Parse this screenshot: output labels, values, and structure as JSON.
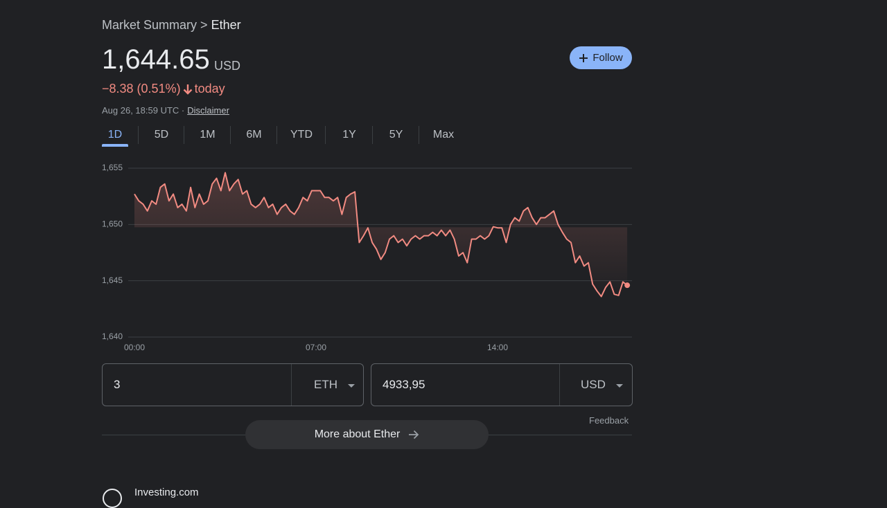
{
  "breadcrumb": {
    "parent": "Market Summary",
    "separator": ">",
    "current": "Ether"
  },
  "quote": {
    "price": "1,644.65",
    "currency": "USD",
    "change": "−8.38 (0.51%)",
    "period": "today",
    "timestamp": "Aug 26, 18:59 UTC ·",
    "disclaimer": "Disclaimer"
  },
  "follow_button": "Follow",
  "tabs": [
    "1D",
    "5D",
    "1M",
    "6M",
    "YTD",
    "1Y",
    "5Y",
    "Max"
  ],
  "active_tab": 0,
  "chart_data": {
    "type": "line",
    "color": "#f28b82",
    "grid": true,
    "x": [
      0,
      10,
      20,
      30,
      40,
      50,
      60,
      70,
      80,
      90,
      100,
      110,
      120,
      130,
      140,
      150,
      160,
      170,
      180,
      190,
      200,
      210,
      220,
      230,
      240,
      250,
      260,
      270,
      280,
      290,
      300,
      310,
      320,
      330,
      340,
      350,
      360,
      370,
      380,
      390,
      400,
      410,
      420,
      430,
      440,
      450,
      460,
      470,
      480,
      490,
      500,
      510,
      520,
      530,
      540,
      550,
      560,
      570,
      580,
      590,
      600,
      610,
      620,
      630,
      640,
      650,
      660,
      670,
      680,
      690,
      700,
      710,
      720,
      730,
      740,
      750,
      760,
      770,
      780,
      790,
      800,
      810,
      820,
      830,
      840,
      850,
      860,
      870,
      880,
      890,
      900,
      910,
      920,
      930,
      940,
      950,
      960,
      970,
      980,
      990,
      1000,
      1010,
      1020,
      1030,
      1040,
      1050,
      1060,
      1070,
      1080,
      1090,
      1100,
      1110,
      1120,
      1130,
      1140
    ],
    "values": [
      1652.7,
      1652.1,
      1651.8,
      1651.2,
      1652.1,
      1651.8,
      1653.3,
      1653.6,
      1652.1,
      1652.7,
      1651.5,
      1651.8,
      1651.2,
      1653.3,
      1651.5,
      1652.7,
      1651.8,
      1652.1,
      1653.6,
      1654.1,
      1653.0,
      1654.6,
      1653.0,
      1653.6,
      1654.0,
      1652.7,
      1653.0,
      1651.8,
      1651.5,
      1651.8,
      1652.4,
      1651.5,
      1651.8,
      1650.9,
      1651.5,
      1651.8,
      1651.2,
      1650.9,
      1651.5,
      1652.4,
      1652.1,
      1653.0,
      1653.0,
      1653.0,
      1652.4,
      1652.4,
      1652.1,
      1652.4,
      1650.9,
      1652.4,
      1652.7,
      1652.9,
      1648.4,
      1649.0,
      1649.7,
      1648.4,
      1647.8,
      1646.9,
      1647.5,
      1648.7,
      1649.0,
      1648.4,
      1648.7,
      1648.1,
      1648.7,
      1649.0,
      1648.7,
      1649.0,
      1649.0,
      1649.3,
      1649.0,
      1649.5,
      1649.0,
      1649.5,
      1648.7,
      1647.2,
      1647.5,
      1646.6,
      1648.7,
      1648.7,
      1649.0,
      1648.7,
      1649.0,
      1649.8,
      1649.7,
      1649.7,
      1648.4,
      1650.0,
      1650.6,
      1650.3,
      1651.2,
      1651.5,
      1650.6,
      1650.0,
      1650.6,
      1650.6,
      1650.9,
      1651.2,
      1650.0,
      1649.3,
      1648.7,
      1648.4,
      1646.6,
      1647.2,
      1646.3,
      1646.6,
      1644.7,
      1644.1,
      1643.6,
      1644.4,
      1644.9,
      1643.8,
      1643.7,
      1644.9,
      1644.6
    ],
    "xlim": [
      0,
      1151
    ],
    "xticks": [
      {
        "value": 0,
        "label": "00:00"
      },
      {
        "value": 420,
        "label": "07:00"
      },
      {
        "value": 840,
        "label": "14:00"
      }
    ],
    "ylim": [
      1640,
      1655
    ],
    "yticks": [
      {
        "value": 1640,
        "label": "1,640"
      },
      {
        "value": 1645,
        "label": "1,645"
      },
      {
        "value": 1650,
        "label": "1,650"
      },
      {
        "value": 1655,
        "label": "1,655"
      }
    ]
  },
  "converter": {
    "from": {
      "amount": "3",
      "currency": "ETH"
    },
    "to": {
      "amount": "4933,95",
      "currency": "USD"
    }
  },
  "feedback": "Feedback",
  "more_button": "More about Ether",
  "source": "Investing.com"
}
